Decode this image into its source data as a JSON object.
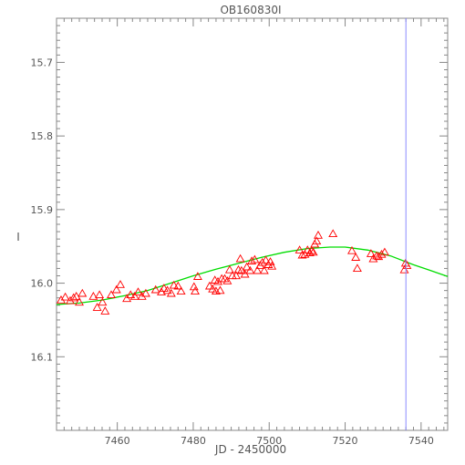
{
  "chart_data": {
    "type": "scatter",
    "title": "OB160830I",
    "xlabel": "JD - 2450000",
    "ylabel": "I",
    "xlim": [
      7544,
      7547
    ],
    "ylim": [
      15.64,
      16.2
    ],
    "y_inverted": true,
    "xticks": [
      7460,
      7480,
      7500,
      7520,
      7540
    ],
    "yticks": [
      15.7,
      15.8,
      15.9,
      16.0,
      16.1
    ],
    "x_range": [
      7444,
      7547
    ],
    "y_range": [
      15.64,
      16.2
    ],
    "grid": false,
    "marker_color": "#ff0000",
    "curve_color": "#00dd00",
    "vline_color": "#8888ff",
    "vline_x": 7536,
    "points": [
      [
        7445.2,
        16.023
      ],
      [
        7446.3,
        16.019
      ],
      [
        7447.6,
        16.024
      ],
      [
        7448.5,
        16.02
      ],
      [
        7449.2,
        16.018
      ],
      [
        7450.0,
        16.026
      ],
      [
        7450.8,
        16.014
      ],
      [
        7453.7,
        16.018
      ],
      [
        7454.7,
        16.033
      ],
      [
        7455.3,
        16.016
      ],
      [
        7456.1,
        16.026
      ],
      [
        7456.8,
        16.038
      ],
      [
        7458.4,
        16.016
      ],
      [
        7459.8,
        16.009
      ],
      [
        7460.8,
        16.002
      ],
      [
        7462.5,
        16.021
      ],
      [
        7463.5,
        16.016
      ],
      [
        7464.6,
        16.018
      ],
      [
        7465.5,
        16.012
      ],
      [
        7466.5,
        16.018
      ],
      [
        7467.5,
        16.014
      ],
      [
        7470.1,
        16.009
      ],
      [
        7471.6,
        16.012
      ],
      [
        7472.3,
        16.007
      ],
      [
        7473.2,
        16.01
      ],
      [
        7474.2,
        16.014
      ],
      [
        7474.9,
        16.003
      ],
      [
        7476.0,
        16.004
      ],
      [
        7476.8,
        16.011
      ],
      [
        7480.2,
        16.005
      ],
      [
        7480.5,
        16.011
      ],
      [
        7481.2,
        15.991
      ],
      [
        7484.3,
        16.004
      ],
      [
        7485.1,
        16.008
      ],
      [
        7485.7,
        15.996
      ],
      [
        7486.0,
        16.011
      ],
      [
        7486.5,
        15.998
      ],
      [
        7487.1,
        16.01
      ],
      [
        7487.5,
        15.994
      ],
      [
        7488.3,
        15.994
      ],
      [
        7489.0,
        15.997
      ],
      [
        7489.6,
        15.982
      ],
      [
        7490.3,
        15.99
      ],
      [
        7491.3,
        15.99
      ],
      [
        7491.9,
        15.982
      ],
      [
        7492.4,
        15.967
      ],
      [
        7492.7,
        15.983
      ],
      [
        7493.6,
        15.988
      ],
      [
        7494.1,
        15.978
      ],
      [
        7495.0,
        15.983
      ],
      [
        7495.4,
        15.97
      ],
      [
        7496.2,
        15.968
      ],
      [
        7496.9,
        15.983
      ],
      [
        7497.6,
        15.976
      ],
      [
        7498.2,
        15.972
      ],
      [
        7498.7,
        15.983
      ],
      [
        7499.1,
        15.969
      ],
      [
        7499.8,
        15.975
      ],
      [
        7500.3,
        15.971
      ],
      [
        7500.7,
        15.977
      ],
      [
        7508.0,
        15.955
      ],
      [
        7508.7,
        15.962
      ],
      [
        7509.4,
        15.961
      ],
      [
        7510.1,
        15.955
      ],
      [
        7510.7,
        15.959
      ],
      [
        7511.2,
        15.956
      ],
      [
        7511.6,
        15.958
      ],
      [
        7512.0,
        15.947
      ],
      [
        7512.5,
        15.943
      ],
      [
        7512.9,
        15.935
      ],
      [
        7516.8,
        15.933
      ],
      [
        7521.8,
        15.956
      ],
      [
        7522.8,
        15.965
      ],
      [
        7523.2,
        15.98
      ],
      [
        7526.8,
        15.96
      ],
      [
        7527.4,
        15.967
      ],
      [
        7528.3,
        15.963
      ],
      [
        7528.8,
        15.964
      ],
      [
        7529.6,
        15.961
      ],
      [
        7530.4,
        15.958
      ],
      [
        7535.6,
        15.982
      ],
      [
        7535.9,
        15.973
      ],
      [
        7536.3,
        15.976
      ]
    ],
    "model_curve": [
      [
        7444,
        16.029
      ],
      [
        7450,
        16.027
      ],
      [
        7456,
        16.023
      ],
      [
        7462,
        16.017
      ],
      [
        7468,
        16.01
      ],
      [
        7474,
        16.0
      ],
      [
        7480,
        15.99
      ],
      [
        7486,
        15.981
      ],
      [
        7492,
        15.973
      ],
      [
        7498,
        15.965
      ],
      [
        7504,
        15.958
      ],
      [
        7510,
        15.953
      ],
      [
        7516,
        15.951
      ],
      [
        7520,
        15.951
      ],
      [
        7526,
        15.955
      ],
      [
        7532,
        15.963
      ],
      [
        7538,
        15.975
      ],
      [
        7542,
        15.982
      ],
      [
        7547,
        15.991
      ]
    ]
  }
}
